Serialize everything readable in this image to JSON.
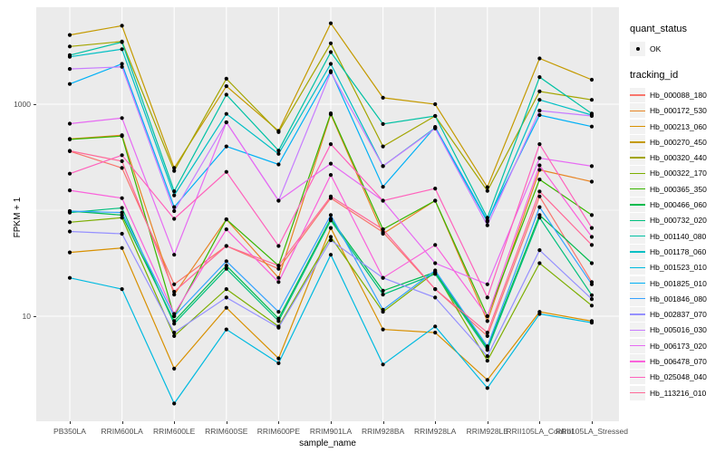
{
  "y_axis": {
    "title": "FPKM + 1",
    "ticks": [
      {
        "label": "1000",
        "value": 1000
      },
      {
        "label": "10",
        "value": 10
      }
    ]
  },
  "x_axis": {
    "title": "sample_name"
  },
  "legend": {
    "quant_status": {
      "title": "quant_status",
      "items": [
        {
          "label": "OK",
          "marker": "point"
        }
      ]
    },
    "tracking_id": {
      "title": "tracking_id"
    }
  },
  "colors": {
    "panel_background": "#EBEBEB",
    "grid_major": "#FFFFFF",
    "grid_minor": "#FFFFFF",
    "point": "#000000",
    "tick_text": "#4D4D4D",
    "legend_key_background": "#F2F2F2"
  },
  "chart_data": {
    "type": "line",
    "title": "",
    "xlabel": "sample_name",
    "ylabel": "FPKM + 1",
    "y_scale": "log10",
    "ylim": [
      1,
      8000
    ],
    "y_major_ticks": [
      10,
      1000
    ],
    "y_minor_ticks": [
      1,
      100
    ],
    "grid": true,
    "legend_position": "right",
    "point_shape": "black dot on every value (quant_status = OK)",
    "x_categories": [
      "PB350LA",
      "RRIM600LA",
      "RRIM600LE",
      "RRIM600SE",
      "RRIM600PE",
      "RRIM901LA",
      "RRIM928BA",
      "RRIM928LA",
      "RRIM928LE",
      "RRII105LA_Control",
      "RRII105LA_Stressed"
    ],
    "series": [
      {
        "name": "Hb_000088_180",
        "color": "#F8766D",
        "values": [
          360,
          250,
          20,
          46,
          28,
          130,
          62,
          18,
          6.5,
          135,
          21
        ]
      },
      {
        "name": "Hb_000172_530",
        "color": "#E88526",
        "values": [
          470,
          510,
          16,
          82,
          23,
          800,
          60,
          123,
          9,
          240,
          186
        ]
      },
      {
        "name": "Hb_000213_060",
        "color": "#D89000",
        "values": [
          40,
          44,
          3.2,
          12,
          4,
          68,
          7.5,
          7,
          2.5,
          11,
          9
        ]
      },
      {
        "name": "Hb_000270_450",
        "color": "#C49A00",
        "values": [
          4500,
          5500,
          250,
          1480,
          560,
          5800,
          1150,
          1000,
          165,
          2700,
          1700
        ]
      },
      {
        "name": "Hb_000320_440",
        "color": "#A3A500",
        "values": [
          3500,
          3900,
          235,
          1740,
          545,
          3750,
          400,
          775,
          152,
          1320,
          1100
        ]
      },
      {
        "name": "Hb_000322_170",
        "color": "#7CAE00",
        "values": [
          77,
          85,
          6.5,
          18,
          8,
          56,
          11,
          26,
          3.8,
          31.6,
          12.6
        ]
      },
      {
        "name": "Hb_000365_350",
        "color": "#39B600",
        "values": [
          465,
          500,
          10,
          82,
          30,
          820,
          66,
          123,
          10,
          195,
          90
        ]
      },
      {
        "name": "Hb_000466_060",
        "color": "#00BB4E",
        "values": [
          98,
          90,
          9,
          30,
          9.5,
          83,
          17.4,
          26,
          5,
          90,
          31.6
        ]
      },
      {
        "name": "Hb_000732_020",
        "color": "#00BF7D",
        "values": [
          95,
          105,
          8.5,
          28,
          9,
          80,
          16,
          25,
          4.8,
          85,
          15.8
        ]
      },
      {
        "name": "Hb_001140_080",
        "color": "#00C1A3",
        "values": [
          2900,
          3850,
          151,
          1230,
          365,
          3100,
          650,
          775,
          85,
          1800,
          815
        ]
      },
      {
        "name": "Hb_001178_060",
        "color": "#00BFC4",
        "values": [
          2800,
          3300,
          138,
          810,
          340,
          2400,
          260,
          600,
          78,
          1100,
          790
        ]
      },
      {
        "name": "Hb_001523_010",
        "color": "#00BAE0",
        "values": [
          23,
          18,
          1.5,
          7.5,
          3.6,
          38,
          3.5,
          8,
          2.1,
          10.5,
          8.7
        ]
      },
      {
        "name": "Hb_001825_010",
        "color": "#00B0F6",
        "values": [
          1550,
          2400,
          107,
          400,
          270,
          2050,
          166,
          610,
          80,
          790,
          615
        ]
      },
      {
        "name": "Hb_001846_080",
        "color": "#35A2FF",
        "values": [
          98,
          95,
          10,
          33,
          11,
          90,
          11.5,
          27,
          5.2,
          107,
          20
        ]
      },
      {
        "name": "Hb_002837_070",
        "color": "#9590FF",
        "values": [
          63,
          60,
          7,
          15,
          7.8,
          52,
          23,
          15,
          4.2,
          42,
          14.5
        ]
      },
      {
        "name": "Hb_005016_030",
        "color": "#C77CFF",
        "values": [
          2150,
          2250,
          98,
          675,
          123,
          2000,
          260,
          590,
          72,
          870,
          775
        ]
      },
      {
        "name": "Hb_006173_020",
        "color": "#E76BF3",
        "values": [
          655,
          740,
          38,
          675,
          123,
          275,
          123,
          31.6,
          20,
          310,
          260
        ]
      },
      {
        "name": "Hb_006478_070",
        "color": "#FA62DB",
        "values": [
          154,
          130,
          10.5,
          66,
          21,
          215,
          23,
          47,
          10,
          265,
          56
        ]
      },
      {
        "name": "Hb_025048_040",
        "color": "#FF62BC",
        "values": [
          221,
          330,
          83,
          230,
          46,
          420,
          123,
          160,
          15,
          420,
          68
        ]
      },
      {
        "name": "Hb_113216_010",
        "color": "#FF6A98",
        "values": [
          363,
          290,
          17,
          46,
          30,
          135,
          66,
          18,
          7,
          150,
          47
        ]
      }
    ]
  }
}
